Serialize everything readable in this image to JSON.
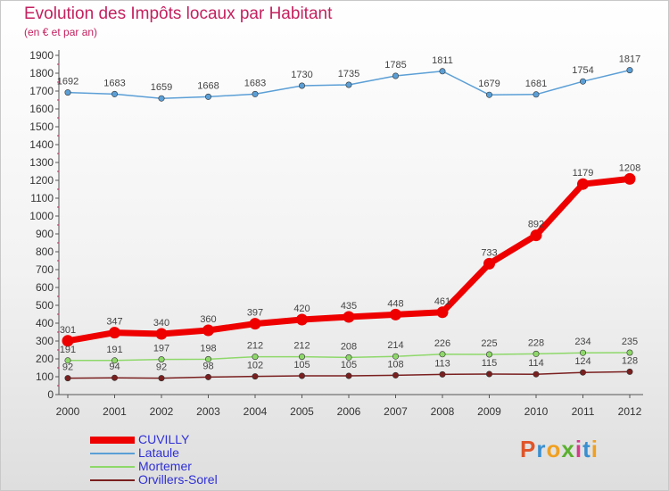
{
  "header": {
    "title": "Evolution des Impôts locaux par Habitant",
    "subtitle": "(en € et par an)"
  },
  "logo": {
    "text": "Proxiti",
    "colors": [
      "#e0552a",
      "#3a8fd0",
      "#f0a020",
      "#5bb030",
      "#d83a8a",
      "#3a8fd0",
      "#f0a020"
    ]
  },
  "chart_data": {
    "type": "line",
    "title": "Evolution des Impôts locaux par Habitant",
    "subtitle": "(en € et par an)",
    "x": [
      "2000",
      "2001",
      "2002",
      "2003",
      "2004",
      "2005",
      "2006",
      "2007",
      "2008",
      "2009",
      "2010",
      "2011",
      "2012"
    ],
    "ylim": [
      0,
      1900
    ],
    "yticks": [
      0,
      100,
      200,
      300,
      400,
      500,
      600,
      700,
      800,
      900,
      1000,
      1100,
      1200,
      1300,
      1400,
      1500,
      1600,
      1700,
      1800,
      1900
    ],
    "grid": false,
    "legend_position": "bottom-left",
    "series": [
      {
        "name": "CUVILLY",
        "color": "#ee0000",
        "values": [
          301,
          347,
          340,
          360,
          397,
          420,
          435,
          448,
          461,
          733,
          892,
          1179,
          1208
        ]
      },
      {
        "name": "Lataule",
        "color": "#5b9fd6",
        "values": [
          1692,
          1683,
          1659,
          1668,
          1683,
          1730,
          1735,
          1785,
          1811,
          1679,
          1681,
          1754,
          1817
        ]
      },
      {
        "name": "Mortemer",
        "color": "#8ed86a",
        "values": [
          191,
          191,
          197,
          198,
          212,
          212,
          208,
          214,
          226,
          225,
          228,
          234,
          235
        ]
      },
      {
        "name": "Orvillers-Sorel",
        "color": "#7a1f1f",
        "values": [
          92,
          94,
          92,
          98,
          102,
          105,
          105,
          108,
          113,
          115,
          114,
          124,
          128
        ]
      }
    ]
  }
}
